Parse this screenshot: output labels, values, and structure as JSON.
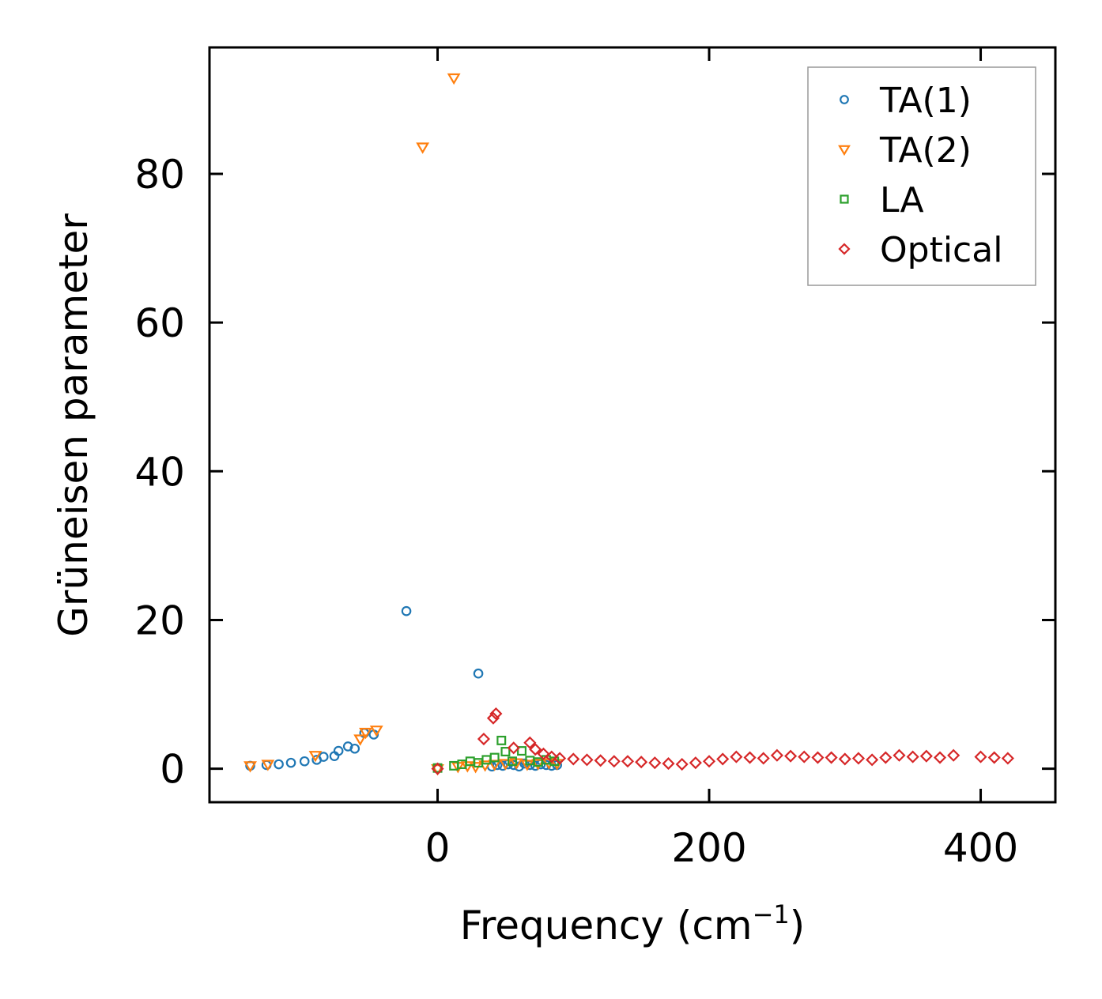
{
  "chart_data": {
    "type": "scatter",
    "title": "",
    "xlabel": "Frequency (cm",
    "xlabel_sup": "−1",
    "xlabel_close": ")",
    "ylabel": "Grüneisen parameter",
    "xlim": [
      -168,
      455
    ],
    "ylim": [
      -4.5,
      97
    ],
    "xticks": [
      0,
      200,
      400
    ],
    "xtick_labels": [
      "0",
      "200",
      "400"
    ],
    "yticks": [
      0,
      20,
      40,
      60,
      80
    ],
    "ytick_labels": [
      "0",
      "20",
      "40",
      "60",
      "80"
    ],
    "grid": false,
    "legend_position": "top-right",
    "series": [
      {
        "name": "TA(1)",
        "marker": "circle",
        "color": "#1f77b4",
        "points": [
          [
            -138,
            0.4
          ],
          [
            -126,
            0.5
          ],
          [
            -117,
            0.6
          ],
          [
            -108,
            0.8
          ],
          [
            -98,
            1.0
          ],
          [
            -89,
            1.2
          ],
          [
            -84,
            1.6
          ],
          [
            -76,
            1.7
          ],
          [
            -73,
            2.4
          ],
          [
            -66,
            3.0
          ],
          [
            -61,
            2.7
          ],
          [
            -54,
            4.8
          ],
          [
            -47,
            4.6
          ],
          [
            -23,
            21.2
          ],
          [
            30,
            12.8
          ],
          [
            0,
            0.1
          ],
          [
            40,
            0.3
          ],
          [
            44,
            0.5
          ],
          [
            48,
            0.4
          ],
          [
            52,
            0.6
          ],
          [
            56,
            0.5
          ],
          [
            60,
            0.3
          ],
          [
            64,
            0.7
          ],
          [
            68,
            0.5
          ],
          [
            72,
            0.4
          ],
          [
            76,
            0.6
          ],
          [
            80,
            0.5
          ],
          [
            84,
            0.4
          ],
          [
            88,
            0.5
          ]
        ]
      },
      {
        "name": "TA(2)",
        "marker": "triangle-down",
        "color": "#ff7f0e",
        "points": [
          [
            -138,
            0.4
          ],
          [
            -125,
            0.6
          ],
          [
            -90,
            1.8
          ],
          [
            -57,
            4.0
          ],
          [
            -53,
            4.9
          ],
          [
            -45,
            5.2
          ],
          [
            -11,
            83.6
          ],
          [
            12,
            92.9
          ],
          [
            0,
            0.0
          ],
          [
            15,
            0.3
          ],
          [
            22,
            0.4
          ],
          [
            28,
            0.3
          ],
          [
            35,
            0.5
          ],
          [
            42,
            0.6
          ],
          [
            50,
            0.7
          ],
          [
            58,
            0.8
          ],
          [
            66,
            0.6
          ],
          [
            74,
            0.7
          ],
          [
            82,
            0.8
          ],
          [
            88,
            0.7
          ]
        ]
      },
      {
        "name": "LA",
        "marker": "square",
        "color": "#2ca02c",
        "points": [
          [
            0,
            0.1
          ],
          [
            12,
            0.4
          ],
          [
            18,
            0.6
          ],
          [
            24,
            1.0
          ],
          [
            30,
            0.8
          ],
          [
            36,
            1.2
          ],
          [
            42,
            1.5
          ],
          [
            47,
            3.8
          ],
          [
            50,
            2.3
          ],
          [
            55,
            1.0
          ],
          [
            62,
            2.4
          ],
          [
            68,
            1.1
          ],
          [
            74,
            0.9
          ],
          [
            80,
            1.2
          ],
          [
            86,
            1.0
          ]
        ]
      },
      {
        "name": "Optical",
        "marker": "diamond",
        "color": "#d62728",
        "points": [
          [
            0,
            0.0
          ],
          [
            34,
            4.0
          ],
          [
            41,
            6.8
          ],
          [
            43,
            7.4
          ],
          [
            56,
            2.8
          ],
          [
            68,
            3.5
          ],
          [
            72,
            2.6
          ],
          [
            78,
            2.0
          ],
          [
            84,
            1.6
          ],
          [
            90,
            1.4
          ],
          [
            100,
            1.3
          ],
          [
            110,
            1.2
          ],
          [
            120,
            1.1
          ],
          [
            130,
            1.0
          ],
          [
            140,
            1.0
          ],
          [
            150,
            0.9
          ],
          [
            160,
            0.8
          ],
          [
            170,
            0.7
          ],
          [
            180,
            0.6
          ],
          [
            190,
            0.8
          ],
          [
            200,
            1.0
          ],
          [
            210,
            1.3
          ],
          [
            220,
            1.6
          ],
          [
            230,
            1.5
          ],
          [
            240,
            1.4
          ],
          [
            250,
            1.8
          ],
          [
            260,
            1.7
          ],
          [
            270,
            1.6
          ],
          [
            280,
            1.5
          ],
          [
            290,
            1.5
          ],
          [
            300,
            1.3
          ],
          [
            310,
            1.4
          ],
          [
            320,
            1.2
          ],
          [
            330,
            1.5
          ],
          [
            340,
            1.8
          ],
          [
            350,
            1.6
          ],
          [
            360,
            1.7
          ],
          [
            370,
            1.5
          ],
          [
            380,
            1.8
          ],
          [
            400,
            1.6
          ],
          [
            410,
            1.5
          ],
          [
            420,
            1.4
          ]
        ]
      }
    ]
  }
}
